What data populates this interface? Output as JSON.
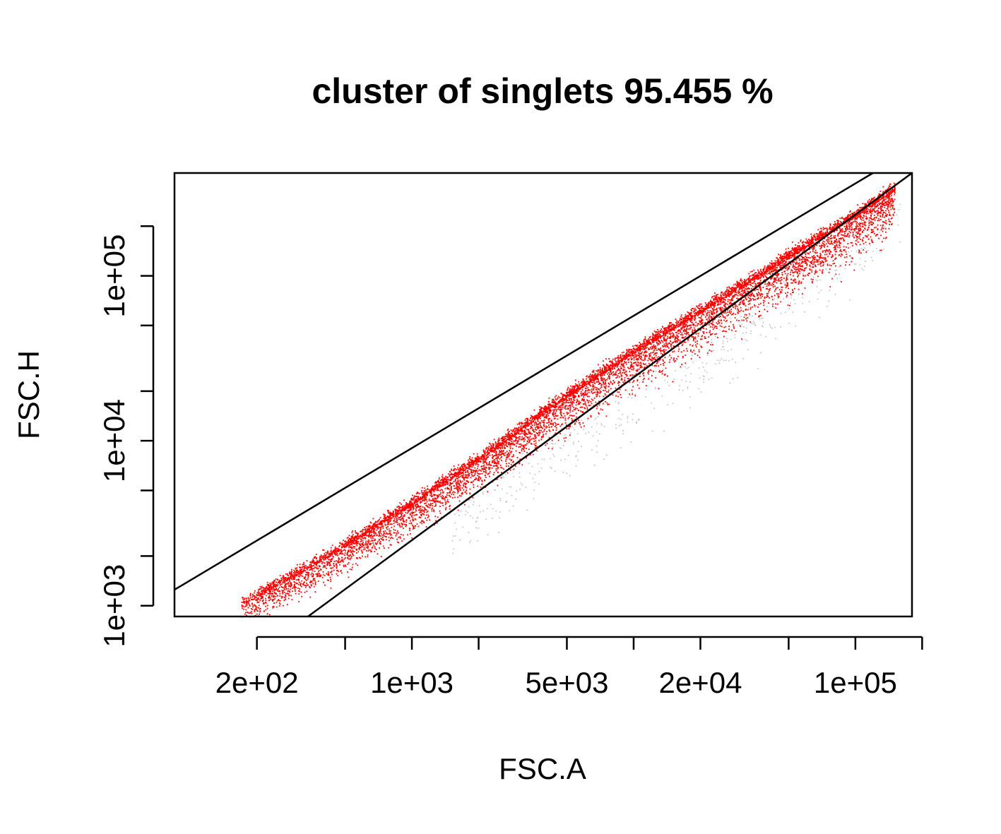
{
  "chart_data": {
    "type": "scatter",
    "title": "cluster of singlets  95.455 %",
    "xlabel": "FSC.A",
    "ylabel": "FSC.H",
    "x_scale": "log10",
    "y_scale": "log10",
    "xlim": [
      85,
      180000
    ],
    "ylim": [
      860,
      420000
    ],
    "grid": false,
    "x_ticks": {
      "values": [
        200,
        500,
        1000,
        2000,
        5000,
        10000,
        20000,
        50000,
        100000,
        200000
      ],
      "labels": [
        {
          "value": 200,
          "text": "2e+02"
        },
        {
          "value": 1000,
          "text": "1e+03"
        },
        {
          "value": 5000,
          "text": "5e+03"
        },
        {
          "value": 20000,
          "text": "2e+04"
        },
        {
          "value": 100000,
          "text": "1e+05"
        }
      ]
    },
    "y_ticks": {
      "values": [
        1000,
        2000,
        5000,
        10000,
        20000,
        50000,
        100000,
        200000
      ],
      "labels": [
        {
          "value": 1000,
          "text": "1e+03"
        },
        {
          "value": 10000,
          "text": "1e+04"
        },
        {
          "value": 100000,
          "text": "1e+05"
        }
      ]
    },
    "series": [
      {
        "role": "singlets",
        "color": "#ff0000",
        "center_line": [
          [
            170,
            1010
          ],
          [
            400,
            1900
          ],
          [
            1000,
            4100
          ],
          [
            2000,
            7600
          ],
          [
            5000,
            18500
          ],
          [
            10000,
            34000
          ],
          [
            30000,
            84000
          ],
          [
            100000,
            230000
          ],
          [
            150000,
            330000
          ]
        ],
        "approx_points": 9500
      },
      {
        "role": "doublets",
        "color": "#bdbdbd",
        "center_line": [
          [
            1500,
            3100
          ],
          [
            5000,
            9500
          ],
          [
            20000,
            33000
          ],
          [
            100000,
            150000
          ],
          [
            160000,
            260000
          ]
        ],
        "approx_points": 450
      }
    ],
    "gate_lines": [
      {
        "name": "upper",
        "points": [
          [
            85,
            1250
          ],
          [
            120000,
            420000
          ]
        ],
        "color": "#000000"
      },
      {
        "name": "lower",
        "points": [
          [
            340,
            860
          ],
          [
            180000,
            420000
          ]
        ],
        "color": "#000000"
      }
    ]
  }
}
